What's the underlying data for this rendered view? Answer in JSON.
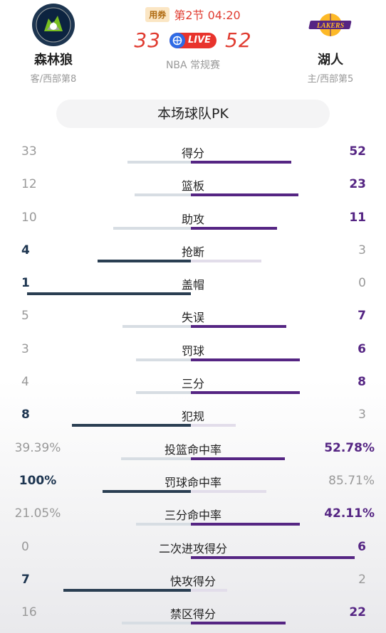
{
  "header": {
    "away": {
      "name": "森林狼",
      "sub": "客/西部第8",
      "logo_icon": "timberwolves-logo",
      "color": "#1d3550"
    },
    "home": {
      "name": "湖人",
      "sub": "主/西部第5",
      "logo_icon": "lakers-logo",
      "color": "#552583"
    },
    "coupon_label": "用券",
    "period": "第2节 04:20",
    "away_score": "33",
    "home_score": "52",
    "live_label": "LIVE",
    "game_type": "NBA 常规赛"
  },
  "pk_title": "本场球队PK",
  "colors": {
    "away_win_bar": "#2a3e52",
    "home_win_bar": "#552583",
    "score_red": "#e03c31"
  },
  "stats": [
    {
      "label": "得分",
      "away": "33",
      "home": "52",
      "away_share": 0.388,
      "home_share": 0.612,
      "winner": "home",
      "pct": false
    },
    {
      "label": "篮板",
      "away": "12",
      "home": "23",
      "away_share": 0.343,
      "home_share": 0.657,
      "winner": "home",
      "pct": false
    },
    {
      "label": "助攻",
      "away": "10",
      "home": "11",
      "away_share": 0.476,
      "home_share": 0.524,
      "winner": "home",
      "pct": false
    },
    {
      "label": "抢断",
      "away": "4",
      "home": "3",
      "away_share": 0.571,
      "home_share": 0.429,
      "winner": "away",
      "pct": false
    },
    {
      "label": "盖帽",
      "away": "1",
      "home": "0",
      "away_share": 1.0,
      "home_share": 0.0,
      "winner": "away",
      "pct": false
    },
    {
      "label": "失误",
      "away": "5",
      "home": "7",
      "away_share": 0.417,
      "home_share": 0.583,
      "winner": "home",
      "pct": false
    },
    {
      "label": "罚球",
      "away": "3",
      "home": "6",
      "away_share": 0.333,
      "home_share": 0.667,
      "winner": "home",
      "pct": false
    },
    {
      "label": "三分",
      "away": "4",
      "home": "8",
      "away_share": 0.333,
      "home_share": 0.667,
      "winner": "home",
      "pct": false
    },
    {
      "label": "犯规",
      "away": "8",
      "home": "3",
      "away_share": 0.727,
      "home_share": 0.273,
      "winner": "away",
      "pct": false
    },
    {
      "label": "投篮命中率",
      "away": "39.39%",
      "home": "52.78%",
      "away_share": 0.427,
      "home_share": 0.573,
      "winner": "home",
      "pct": true
    },
    {
      "label": "罚球命中率",
      "away": "100%",
      "home": "85.71%",
      "away_share": 0.538,
      "home_share": 0.462,
      "winner": "away",
      "pct": true
    },
    {
      "label": "三分命中率",
      "away": "21.05%",
      "home": "42.11%",
      "away_share": 0.333,
      "home_share": 0.667,
      "winner": "home",
      "pct": true
    },
    {
      "label": "二次进攻得分",
      "away": "0",
      "home": "6",
      "away_share": 0.0,
      "home_share": 1.0,
      "winner": "home",
      "pct": false
    },
    {
      "label": "快攻得分",
      "away": "7",
      "home": "2",
      "away_share": 0.778,
      "home_share": 0.222,
      "winner": "away",
      "pct": false
    },
    {
      "label": "禁区得分",
      "away": "16",
      "home": "22",
      "away_share": 0.421,
      "home_share": 0.579,
      "winner": "home",
      "pct": false
    }
  ]
}
